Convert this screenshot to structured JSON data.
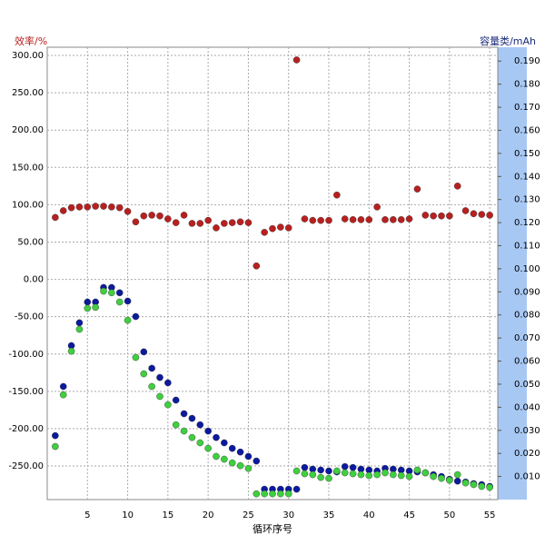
{
  "chart_data": {
    "type": "scatter",
    "y_label": "效率/%",
    "y2_label": "容量类/mAh",
    "x_label": "循环序号",
    "x": [
      1,
      2,
      3,
      4,
      5,
      6,
      7,
      8,
      9,
      10,
      11,
      12,
      13,
      14,
      15,
      16,
      17,
      18,
      19,
      20,
      21,
      22,
      23,
      24,
      25,
      26,
      27,
      28,
      29,
      30,
      31,
      32,
      33,
      34,
      35,
      36,
      37,
      38,
      39,
      40,
      41,
      42,
      43,
      44,
      45,
      46,
      47,
      48,
      49,
      50,
      51,
      52,
      53,
      54,
      55
    ],
    "series": [
      {
        "color": "#b82020",
        "values": [
          83,
          92,
          96,
          97,
          97,
          98,
          98,
          97,
          96,
          91,
          77,
          85,
          86,
          85,
          81,
          76,
          86,
          75,
          75,
          79,
          69,
          75,
          76,
          77,
          76,
          18,
          63,
          68,
          70,
          69,
          294,
          81,
          79,
          79,
          79,
          113,
          81,
          80,
          80,
          80,
          97,
          80,
          80,
          80,
          81,
          121,
          86,
          85,
          85,
          85,
          125,
          92,
          88,
          87,
          86
        ]
      },
      {
        "color": "#0c1a9e",
        "axis": "y2",
        "values": [
          0.0277,
          0.049,
          0.0667,
          0.0766,
          0.0856,
          0.0856,
          0.0919,
          0.0919,
          0.0896,
          0.086,
          0.0793,
          0.064,
          0.0569,
          0.0529,
          0.0506,
          0.0431,
          0.0372,
          0.0352,
          0.0324,
          0.0297,
          0.0269,
          0.0246,
          0.0222,
          0.0206,
          0.0187,
          0.0167,
          0.0045,
          0.0045,
          0.0045,
          0.0045,
          0.0045,
          0.0139,
          0.0132,
          0.0128,
          0.0124,
          0.012,
          0.0143,
          0.0139,
          0.0132,
          0.0128,
          0.0124,
          0.0135,
          0.0132,
          0.0128,
          0.0124,
          0.012,
          0.0116,
          0.0108,
          0.01,
          0.0088,
          0.008,
          0.0076,
          0.0069,
          0.0065,
          0.0057
        ]
      },
      {
        "color": "#3fcf3f",
        "axis": "y2",
        "values": [
          0.023,
          0.0454,
          0.0643,
          0.0738,
          0.0829,
          0.0833,
          0.0903,
          0.0896,
          0.0856,
          0.0777,
          0.0616,
          0.0545,
          0.049,
          0.0447,
          0.0411,
          0.0324,
          0.0297,
          0.0269,
          0.0246,
          0.0222,
          0.0187,
          0.0175,
          0.0159,
          0.0147,
          0.0135,
          0.0025,
          0.0025,
          0.0025,
          0.0025,
          0.0025,
          0.0124,
          0.0112,
          0.0108,
          0.0096,
          0.0092,
          0.0124,
          0.0116,
          0.0112,
          0.0108,
          0.0104,
          0.0108,
          0.0116,
          0.0108,
          0.0104,
          0.01,
          0.0128,
          0.0116,
          0.01,
          0.0092,
          0.0084,
          0.0108,
          0.0072,
          0.0065,
          0.0057,
          0.0053
        ]
      }
    ],
    "xlim": [
      0,
      56
    ],
    "xticks": [
      5,
      10,
      15,
      20,
      25,
      30,
      35,
      40,
      45,
      50,
      55
    ],
    "ylim": [
      -295,
      311
    ],
    "yticks": [
      {
        "value": 300,
        "label": "300.00"
      },
      {
        "value": 250,
        "label": "250.00"
      },
      {
        "value": 200,
        "label": "200.00"
      },
      {
        "value": 150,
        "label": "150.00"
      },
      {
        "value": 100,
        "label": "100.00"
      },
      {
        "value": 50,
        "label": "50.00"
      },
      {
        "value": 0,
        "label": "0.00"
      },
      {
        "value": -50,
        "label": "-50.00"
      },
      {
        "value": -100,
        "label": "-100.00"
      },
      {
        "value": -150,
        "label": "-150.00"
      },
      {
        "value": -200,
        "label": "-200.00"
      },
      {
        "value": -250,
        "label": "-250.00"
      }
    ],
    "y2lim": [
      0,
      0.196
    ],
    "y2ticks": [
      {
        "value": 0.19,
        "label": "0.190"
      },
      {
        "value": 0.18,
        "label": "0.180"
      },
      {
        "value": 0.17,
        "label": "0.170"
      },
      {
        "value": 0.16,
        "label": "0.160"
      },
      {
        "value": 0.15,
        "label": "0.150"
      },
      {
        "value": 0.14,
        "label": "0.140"
      },
      {
        "value": 0.13,
        "label": "0.130"
      },
      {
        "value": 0.12,
        "label": "0.120"
      },
      {
        "value": 0.11,
        "label": "0.110"
      },
      {
        "value": 0.1,
        "label": "0.100"
      },
      {
        "value": 0.09,
        "label": "0.090"
      },
      {
        "value": 0.08,
        "label": "0.080"
      },
      {
        "value": 0.07,
        "label": "0.070"
      },
      {
        "value": 0.06,
        "label": "0.060"
      },
      {
        "value": 0.05,
        "label": "0.050"
      },
      {
        "value": 0.04,
        "label": "0.040"
      },
      {
        "value": 0.03,
        "label": "0.030"
      },
      {
        "value": 0.02,
        "label": "0.020"
      },
      {
        "value": 0.01,
        "label": "0.010"
      }
    ],
    "grid": true
  }
}
